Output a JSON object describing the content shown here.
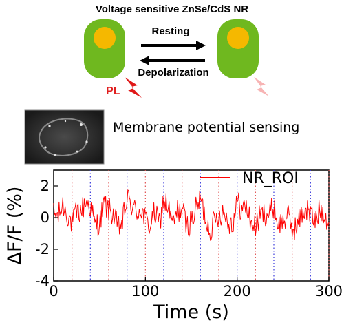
{
  "schematic": {
    "title": "Voltage sensitive ZnSe/CdS NR",
    "arrow_top_label": "Resting",
    "arrow_bottom_label": "Depolarization",
    "pl_label": "PL",
    "colors": {
      "rod_body": "#6fb81f",
      "rod_core": "#f5b800",
      "lightning_bright": "#e01818",
      "lightning_faint": "#f7b4b4"
    }
  },
  "inset": {
    "subtitle": "Membrane potential sensing"
  },
  "chart_data": {
    "type": "line",
    "title": "",
    "xlabel": "Time (s)",
    "ylabel": "ΔF/F (%)",
    "xlim": [
      0,
      300
    ],
    "ylim": [
      -4,
      3
    ],
    "xticks": [
      0,
      100,
      200,
      300
    ],
    "yticks": [
      -4,
      -2,
      0,
      2
    ],
    "grid": false,
    "legend_position": "top-right",
    "series": [
      {
        "name": "NR_ROI",
        "color": "#ff0000",
        "x": [
          0,
          5,
          10,
          15,
          20,
          25,
          30,
          35,
          40,
          45,
          50,
          55,
          60,
          65,
          70,
          75,
          80,
          85,
          90,
          95,
          100,
          105,
          110,
          115,
          120,
          125,
          130,
          135,
          140,
          145,
          150,
          155,
          160,
          165,
          170,
          175,
          180,
          185,
          190,
          195,
          200,
          205,
          210,
          215,
          220,
          225,
          230,
          235,
          240,
          245,
          250,
          255,
          260,
          265,
          270,
          275,
          280,
          285,
          290,
          295,
          300
        ],
        "y": [
          0.2,
          0.1,
          0.8,
          0.2,
          -0.4,
          0.3,
          0.4,
          1.0,
          0.7,
          -0.5,
          -0.3,
          0.8,
          0.5,
          0.2,
          -0.7,
          -0.3,
          1.2,
          0.8,
          0.3,
          0.6,
          -0.2,
          -0.5,
          0.3,
          -0.4,
          1.1,
          0.6,
          -0.5,
          0.4,
          0.6,
          -0.6,
          -0.2,
          0.5,
          1.2,
          0.1,
          -0.8,
          -0.3,
          0.2,
          0.4,
          -0.2,
          -0.4,
          1.0,
          0.5,
          0.7,
          -0.3,
          -0.6,
          0.1,
          0.3,
          0.2,
          0.7,
          -0.5,
          -0.2,
          0.1,
          -0.7,
          -0.6,
          0.2,
          0.6,
          0.2,
          -0.3,
          0.5,
          0.4,
          -0.3
        ],
        "noise_amplitude": 0.8
      }
    ],
    "event_markers": {
      "resting": {
        "color": "#e05050",
        "style": "dotted",
        "x": [
          20,
          60,
          100,
          140,
          180,
          220,
          260,
          300
        ]
      },
      "depolarization": {
        "color": "#3a3adc",
        "style": "dotted",
        "x": [
          40,
          80,
          120,
          160,
          200,
          240,
          280
        ]
      }
    }
  }
}
